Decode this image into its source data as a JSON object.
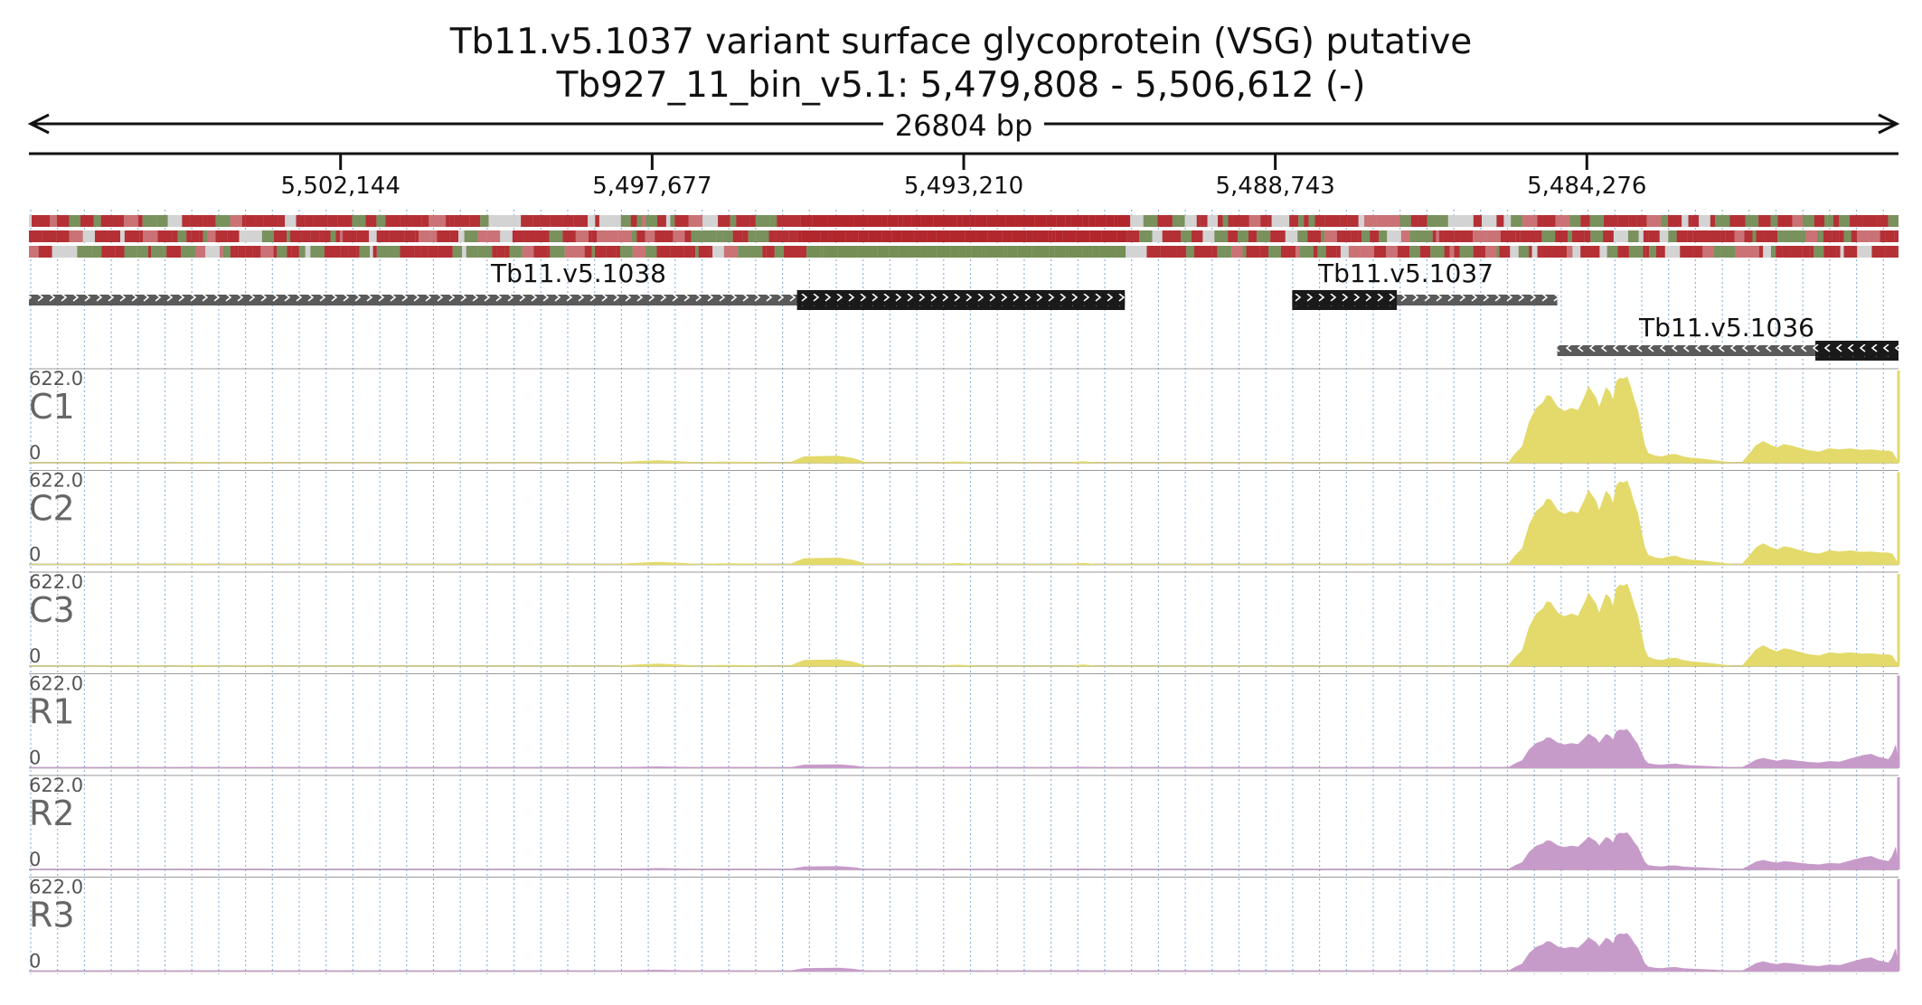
{
  "header": {
    "title_line1": "Tb11.v5.1037  variant surface glycoprotein (VSG)  putative",
    "title_line2": "Tb927_11_bin_v5.1: 5,479,808 - 5,506,612 (-)",
    "span_label": "26804 bp"
  },
  "chart_data": {
    "type": "area",
    "x_range": [
      5506612,
      5479808
    ],
    "x_direction": "reversed",
    "x_tick_labels": [
      "5,502,144",
      "5,497,677",
      "5,493,210",
      "5,488,743",
      "5,484,276"
    ],
    "x_ticks": [
      5502144,
      5497677,
      5493210,
      5488743,
      5484276
    ],
    "grid": "dotted-vertical",
    "genes": [
      {
        "name": "Tb11.v5.1038",
        "strand": "+",
        "start": 5506612,
        "end": 5490900,
        "cds_start": 5495600,
        "cds_end": 5490900
      },
      {
        "name": "Tb11.v5.1037",
        "strand": "+",
        "start": 5488500,
        "end": 5484700,
        "cds_start": 5488500,
        "cds_end": 5487000
      },
      {
        "name": "Tb11.v5.1036",
        "strand": "-",
        "start": 5484700,
        "end": 5479808,
        "cds_start": 5481000,
        "cds_end": 5479808
      }
    ],
    "ymax_label": "622.0",
    "ymin_label": "0",
    "ylim": [
      0,
      622
    ],
    "colors": {
      "control": "#e3da6b",
      "rnai": "#c79bc9",
      "strip_red": "#b01e23",
      "strip_green": "#6f8a4f",
      "strip_gray": "#d3d3d3"
    },
    "track_shape": [
      [
        5506612,
        0
      ],
      [
        5506000,
        0
      ],
      [
        5505400,
        2
      ],
      [
        5504900,
        2
      ],
      [
        5504600,
        0
      ],
      [
        5504200,
        3
      ],
      [
        5503900,
        0
      ],
      [
        5503500,
        2
      ],
      [
        5503000,
        0
      ],
      [
        5498200,
        0
      ],
      [
        5497900,
        7
      ],
      [
        5497600,
        14
      ],
      [
        5497300,
        8
      ],
      [
        5497000,
        0
      ],
      [
        5496700,
        5
      ],
      [
        5496400,
        4
      ],
      [
        5496000,
        0
      ],
      [
        5495700,
        0
      ],
      [
        5495500,
        40
      ],
      [
        5495000,
        42
      ],
      [
        5494800,
        28
      ],
      [
        5494600,
        0
      ],
      [
        5493600,
        0
      ],
      [
        5493300,
        6
      ],
      [
        5493000,
        0
      ],
      [
        5491700,
        0
      ],
      [
        5491500,
        8
      ],
      [
        5491300,
        0
      ],
      [
        5485400,
        0
      ],
      [
        5485300,
        60
      ],
      [
        5485200,
        110
      ],
      [
        5485100,
        260
      ],
      [
        5485000,
        360
      ],
      [
        5484900,
        410
      ],
      [
        5484850,
        430
      ],
      [
        5484800,
        440
      ],
      [
        5484700,
        380
      ],
      [
        5484600,
        330
      ],
      [
        5484500,
        360
      ],
      [
        5484400,
        355
      ],
      [
        5484300,
        430
      ],
      [
        5484250,
        500
      ],
      [
        5484200,
        480
      ],
      [
        5484150,
        420
      ],
      [
        5484100,
        360
      ],
      [
        5484050,
        440
      ],
      [
        5484000,
        480
      ],
      [
        5483950,
        470
      ],
      [
        5483900,
        420
      ],
      [
        5483850,
        520
      ],
      [
        5483800,
        560
      ],
      [
        5483750,
        570
      ],
      [
        5483700,
        550
      ],
      [
        5483650,
        500
      ],
      [
        5483600,
        430
      ],
      [
        5483550,
        340
      ],
      [
        5483500,
        230
      ],
      [
        5483450,
        120
      ],
      [
        5483400,
        60
      ],
      [
        5483300,
        45
      ],
      [
        5483200,
        40
      ],
      [
        5483100,
        50
      ],
      [
        5483000,
        55
      ],
      [
        5482900,
        40
      ],
      [
        5482800,
        30
      ],
      [
        5482600,
        22
      ],
      [
        5482400,
        12
      ],
      [
        5482200,
        0
      ],
      [
        5482050,
        0
      ],
      [
        5481950,
        55
      ],
      [
        5481850,
        110
      ],
      [
        5481750,
        140
      ],
      [
        5481650,
        120
      ],
      [
        5481550,
        95
      ],
      [
        5481450,
        120
      ],
      [
        5481350,
        115
      ],
      [
        5481250,
        95
      ],
      [
        5481100,
        80
      ],
      [
        5480950,
        72
      ],
      [
        5480800,
        90
      ],
      [
        5480650,
        85
      ],
      [
        5480500,
        95
      ],
      [
        5480350,
        80
      ],
      [
        5480200,
        85
      ],
      [
        5480050,
        80
      ],
      [
        5479950,
        75
      ],
      [
        5479900,
        70
      ],
      [
        5479808,
        0
      ]
    ],
    "series": [
      {
        "name": "C1",
        "group": "control",
        "scale": 1.0
      },
      {
        "name": "C2",
        "group": "control",
        "scale": 0.97
      },
      {
        "name": "C3",
        "group": "control",
        "scale": 0.95
      },
      {
        "name": "R1",
        "group": "rnai",
        "scale": 0.44
      },
      {
        "name": "R2",
        "group": "rnai",
        "scale": 0.42
      },
      {
        "name": "R3",
        "group": "rnai",
        "scale": 0.43
      }
    ],
    "series_overrides": {
      "tail": [
        [
          5480450,
          150
        ],
        [
          5480300,
          180
        ],
        [
          5480200,
          200
        ],
        [
          5480100,
          160
        ],
        [
          5480000,
          130
        ],
        [
          5479950,
          120
        ],
        [
          5479900,
          200
        ],
        [
          5479850,
          320
        ],
        [
          5479808,
          0
        ]
      ]
    }
  }
}
